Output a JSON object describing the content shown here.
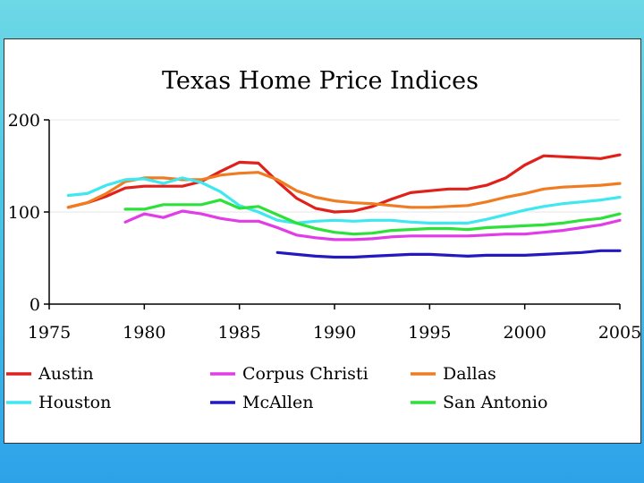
{
  "chart_data": {
    "type": "line",
    "title": "Texas Home Price Indices",
    "xlabel": "",
    "ylabel": "",
    "xlim": [
      1975,
      2005
    ],
    "ylim": [
      0,
      200
    ],
    "x_ticks": [
      "1975",
      "1980",
      "1985",
      "1990",
      "1995",
      "2000",
      "2005"
    ],
    "y_ticks": [
      "0",
      "100",
      "200"
    ],
    "grid": true,
    "legend_position": "bottom",
    "series": [
      {
        "name": "Austin",
        "color": "#e0201a",
        "x": [
          1976,
          1977,
          1978,
          1979,
          1980,
          1981,
          1982,
          1983,
          1984,
          1985,
          1986,
          1987,
          1988,
          1989,
          1990,
          1991,
          1992,
          1993,
          1994,
          1995,
          1996,
          1997,
          1998,
          1999,
          2000,
          2001,
          2002,
          2003,
          2004,
          2005
        ],
        "values": [
          105,
          110,
          117,
          126,
          128,
          128,
          128,
          133,
          144,
          154,
          153,
          133,
          115,
          104,
          100,
          101,
          106,
          114,
          121,
          123,
          125,
          125,
          129,
          137,
          151,
          161,
          160,
          159,
          158,
          162
        ]
      },
      {
        "name": "Corpus Christi",
        "color": "#e23be8",
        "x": [
          1979,
          1980,
          1981,
          1982,
          1983,
          1984,
          1985,
          1986,
          1987,
          1988,
          1989,
          1990,
          1991,
          1992,
          1993,
          1994,
          1995,
          1996,
          1997,
          1998,
          1999,
          2000,
          2001,
          2002,
          2003,
          2004,
          2005
        ],
        "values": [
          89,
          98,
          94,
          101,
          98,
          93,
          90,
          90,
          83,
          75,
          72,
          70,
          70,
          71,
          73,
          74,
          74,
          74,
          74,
          75,
          76,
          76,
          78,
          80,
          83,
          86,
          91
        ]
      },
      {
        "name": "Dallas",
        "color": "#f07c22",
        "x": [
          1976,
          1977,
          1978,
          1979,
          1980,
          1981,
          1982,
          1983,
          1984,
          1985,
          1986,
          1987,
          1988,
          1989,
          1990,
          1991,
          1992,
          1993,
          1994,
          1995,
          1996,
          1997,
          1998,
          1999,
          2000,
          2001,
          2002,
          2003,
          2004,
          2005
        ],
        "values": [
          105,
          110,
          120,
          133,
          137,
          137,
          135,
          135,
          140,
          142,
          143,
          135,
          123,
          116,
          112,
          110,
          109,
          107,
          105,
          105,
          106,
          107,
          111,
          116,
          120,
          125,
          127,
          128,
          129,
          131
        ]
      },
      {
        "name": "Houston",
        "color": "#3fe8f0",
        "x": [
          1976,
          1977,
          1978,
          1979,
          1980,
          1981,
          1982,
          1983,
          1984,
          1985,
          1986,
          1987,
          1988,
          1989,
          1990,
          1991,
          1992,
          1993,
          1994,
          1995,
          1996,
          1997,
          1998,
          1999,
          2000,
          2001,
          2002,
          2003,
          2004,
          2005
        ],
        "values": [
          118,
          120,
          129,
          135,
          136,
          131,
          137,
          132,
          122,
          107,
          100,
          91,
          88,
          90,
          91,
          90,
          91,
          91,
          89,
          88,
          88,
          88,
          92,
          97,
          102,
          106,
          109,
          111,
          113,
          116
        ]
      },
      {
        "name": "McAllen",
        "color": "#2418c0",
        "x": [
          1987,
          1988,
          1989,
          1990,
          1991,
          1992,
          1993,
          1994,
          1995,
          1996,
          1997,
          1998,
          1999,
          2000,
          2001,
          2002,
          2003,
          2004,
          2005
        ],
        "values": [
          56,
          54,
          52,
          51,
          51,
          52,
          53,
          54,
          54,
          53,
          52,
          53,
          53,
          53,
          54,
          55,
          56,
          58,
          58
        ]
      },
      {
        "name": "San Antonio",
        "color": "#2ee03a",
        "x": [
          1979,
          1980,
          1981,
          1982,
          1983,
          1984,
          1985,
          1986,
          1987,
          1988,
          1989,
          1990,
          1991,
          1992,
          1993,
          1994,
          1995,
          1996,
          1997,
          1998,
          1999,
          2000,
          2001,
          2002,
          2003,
          2004,
          2005
        ],
        "values": [
          103,
          103,
          108,
          108,
          108,
          113,
          104,
          106,
          97,
          88,
          82,
          78,
          76,
          77,
          80,
          81,
          82,
          82,
          81,
          83,
          84,
          85,
          86,
          88,
          91,
          93,
          98
        ]
      }
    ]
  }
}
